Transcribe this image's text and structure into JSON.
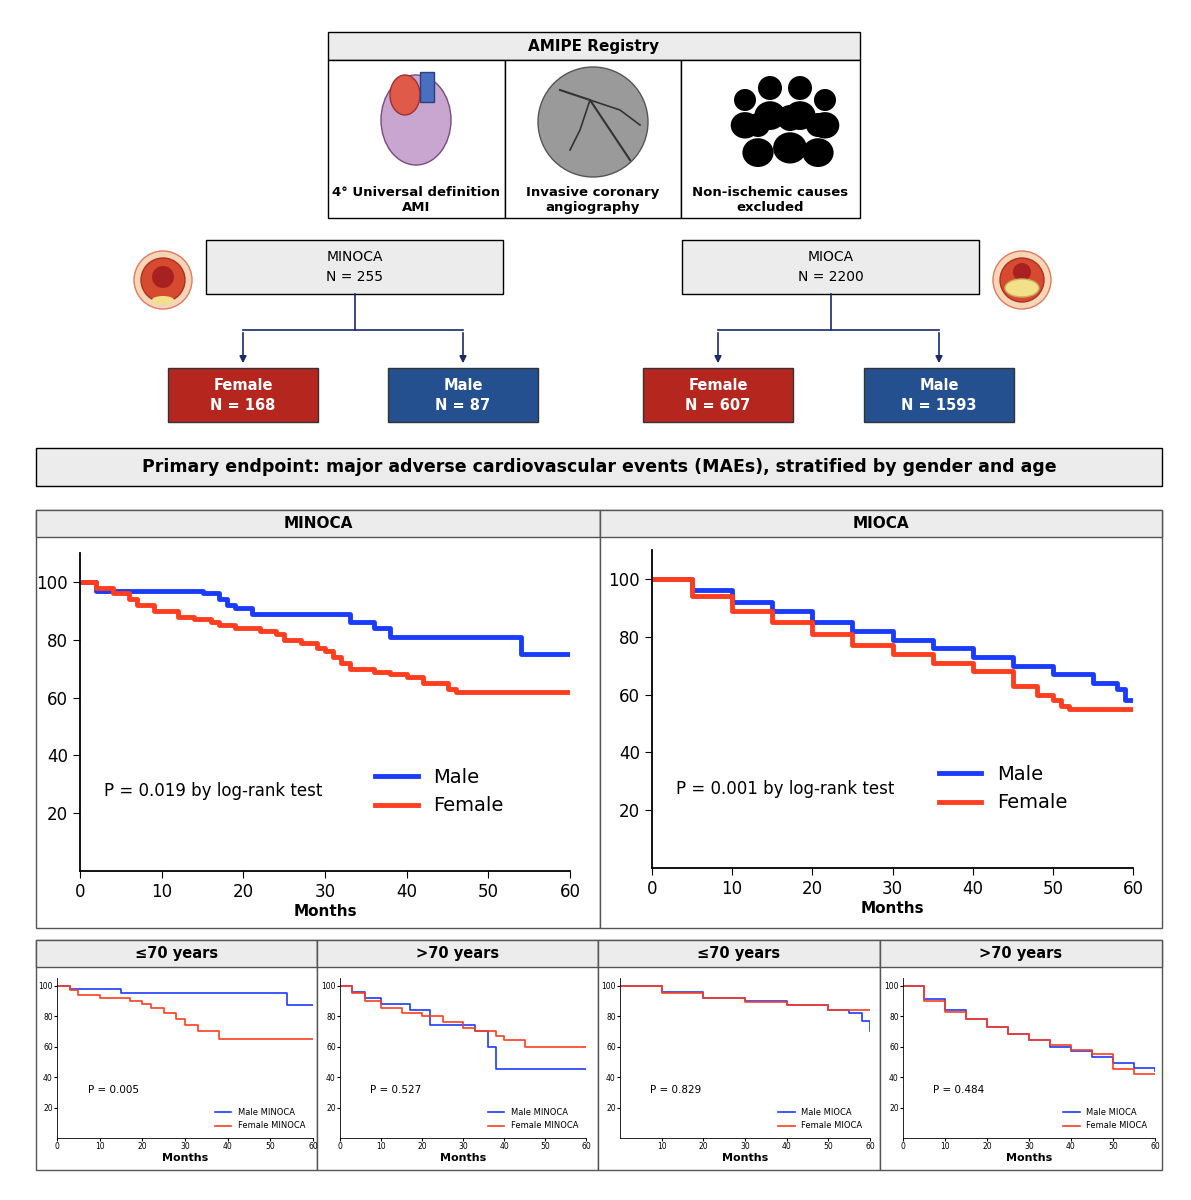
{
  "diagram": {
    "registry": {
      "title": "AMIPE Registry",
      "panels": [
        "4° Universal definition\nAMI",
        "Invasive coronary\nangiography",
        "Non-ischemic causes\nexcluded"
      ]
    },
    "groups": [
      {
        "label": "MINOCA",
        "n": "N = 255",
        "subgroups": [
          {
            "label": "Female",
            "n": "N = 168"
          },
          {
            "label": "Male",
            "n": "N = 87"
          }
        ]
      },
      {
        "label": "MIOCA",
        "n": "N = 2200",
        "subgroups": [
          {
            "label": "Female",
            "n": "N = 607"
          },
          {
            "label": "Male",
            "n": "N = 1593"
          }
        ]
      }
    ],
    "endpoint": "Primary endpoint: major adverse cardiovascular events (MAEs), stratified by gender and age"
  },
  "chart_data": [
    {
      "type": "step",
      "title": "MINOCA",
      "xlabel": "Months",
      "annotation": "P = 0.019 by log-rank test",
      "xlim": [
        0,
        60
      ],
      "ylim": [
        0,
        110
      ],
      "xticks": [
        0,
        10,
        20,
        30,
        40,
        50,
        60
      ],
      "yticks": [
        20,
        40,
        60,
        80,
        100
      ],
      "legend": "lower right",
      "series": [
        {
          "name": "Male",
          "color": "#1a3cff",
          "x": [
            0,
            2,
            15,
            17,
            18,
            19,
            21,
            33,
            36,
            38,
            54,
            60
          ],
          "values": [
            100,
            97,
            96,
            94,
            92,
            91,
            89,
            86,
            84,
            81,
            75,
            75
          ]
        },
        {
          "name": "Female",
          "color": "#ff3d1f",
          "x": [
            0,
            2,
            4,
            6,
            7,
            9,
            12,
            14,
            16,
            17,
            19,
            22,
            24,
            25,
            27,
            29,
            30,
            31,
            32,
            33,
            36,
            38,
            40,
            42,
            45,
            46,
            60
          ],
          "values": [
            100,
            98,
            96,
            94,
            92,
            90,
            88,
            87,
            86,
            85,
            84,
            83,
            82,
            80,
            79,
            77,
            76,
            74,
            72,
            70,
            69,
            68,
            67,
            65,
            63,
            62,
            62
          ]
        }
      ]
    },
    {
      "type": "step",
      "title": "MIOCA",
      "xlabel": "Months",
      "annotation": "P = 0.001 by log-rank test",
      "xlim": [
        0,
        60
      ],
      "ylim": [
        0,
        110
      ],
      "xticks": [
        0,
        10,
        20,
        30,
        40,
        50,
        60
      ],
      "yticks": [
        20,
        40,
        60,
        80,
        100
      ],
      "legend": "lower right",
      "series": [
        {
          "name": "Male",
          "color": "#1a3cff",
          "x": [
            0,
            5,
            10,
            15,
            20,
            25,
            30,
            35,
            40,
            45,
            50,
            55,
            58,
            59,
            60
          ],
          "values": [
            100,
            96,
            92,
            89,
            85,
            82,
            79,
            76,
            73,
            70,
            67,
            64,
            62,
            58,
            58
          ]
        },
        {
          "name": "Female",
          "color": "#ff3d1f",
          "x": [
            0,
            5,
            10,
            15,
            20,
            25,
            30,
            35,
            40,
            45,
            48,
            50,
            51,
            52,
            60
          ],
          "values": [
            100,
            94,
            89,
            85,
            81,
            77,
            74,
            71,
            68,
            63,
            60,
            58,
            56,
            55,
            55
          ]
        }
      ]
    },
    {
      "type": "step",
      "title": "≤70 years",
      "xlabel": "Months",
      "annotation": "P = 0.005",
      "xlim": [
        0,
        60
      ],
      "ylim": [
        0,
        105
      ],
      "xticks": [
        0,
        10,
        20,
        30,
        40,
        50,
        60
      ],
      "yticks": [
        20,
        40,
        60,
        80,
        100
      ],
      "legend": "lower right",
      "series": [
        {
          "name": "Male MINOCA",
          "color": "#1a3cff",
          "x": [
            0,
            3,
            15,
            54,
            60
          ],
          "values": [
            100,
            98,
            95,
            87,
            87
          ]
        },
        {
          "name": "Female MINOCA",
          "color": "#ff3d1f",
          "x": [
            0,
            3,
            5,
            10,
            17,
            20,
            22,
            25,
            28,
            30,
            33,
            38,
            60
          ],
          "values": [
            100,
            97,
            94,
            92,
            90,
            88,
            85,
            82,
            78,
            74,
            70,
            65,
            65
          ]
        }
      ]
    },
    {
      "type": "step",
      "title": ">70 years",
      "xlabel": "Months",
      "annotation": "P = 0.527",
      "xlim": [
        0,
        60
      ],
      "ylim": [
        0,
        105
      ],
      "xticks": [
        0,
        10,
        20,
        30,
        40,
        50,
        60
      ],
      "yticks": [
        20,
        40,
        60,
        80,
        100
      ],
      "legend": "lower right",
      "series": [
        {
          "name": "Male MINOCA",
          "color": "#1a3cff",
          "x": [
            0,
            3,
            6,
            10,
            17,
            22,
            33,
            36,
            38,
            60
          ],
          "values": [
            100,
            96,
            92,
            88,
            84,
            74,
            70,
            60,
            45,
            45
          ]
        },
        {
          "name": "Female MINOCA",
          "color": "#ff3d1f",
          "x": [
            0,
            3,
            6,
            10,
            15,
            20,
            25,
            30,
            33,
            38,
            40,
            45,
            60
          ],
          "values": [
            100,
            95,
            90,
            85,
            82,
            80,
            76,
            72,
            70,
            67,
            64,
            60,
            60
          ]
        }
      ]
    },
    {
      "type": "step",
      "title": "≤70 years",
      "xlabel": "Months",
      "annotation": "P = 0.829",
      "xlim": [
        0,
        60
      ],
      "ylim": [
        0,
        105
      ],
      "xticks": [
        10,
        20,
        30,
        40,
        50,
        60
      ],
      "yticks": [
        20,
        40,
        60,
        80,
        100
      ],
      "legend": "lower right",
      "series": [
        {
          "name": "Male MIOCA",
          "color": "#1a3cff",
          "x": [
            0,
            10,
            20,
            30,
            40,
            50,
            55,
            58,
            60
          ],
          "values": [
            100,
            96,
            92,
            90,
            87,
            84,
            82,
            77,
            70
          ]
        },
        {
          "name": "Female MIOCA",
          "color": "#ff3d1f",
          "x": [
            0,
            10,
            20,
            30,
            40,
            50,
            60
          ],
          "values": [
            100,
            95,
            92,
            89,
            87,
            84,
            84
          ]
        }
      ]
    },
    {
      "type": "step",
      "title": ">70 years",
      "xlabel": "Months",
      "annotation": "P = 0.484",
      "xlim": [
        0,
        60
      ],
      "ylim": [
        0,
        105
      ],
      "xticks": [
        0,
        10,
        20,
        30,
        40,
        50,
        60
      ],
      "yticks": [
        20,
        40,
        60,
        80,
        100
      ],
      "legend": "lower right",
      "series": [
        {
          "name": "Male MIOCA",
          "color": "#1a3cff",
          "x": [
            0,
            5,
            10,
            15,
            20,
            25,
            30,
            35,
            40,
            45,
            50,
            55,
            60
          ],
          "values": [
            100,
            91,
            84,
            78,
            73,
            68,
            64,
            60,
            57,
            53,
            49,
            46,
            44
          ]
        },
        {
          "name": "Female MIOCA",
          "color": "#ff3d1f",
          "x": [
            0,
            5,
            10,
            15,
            20,
            25,
            30,
            35,
            40,
            45,
            50,
            55,
            60
          ],
          "values": [
            100,
            90,
            83,
            78,
            73,
            68,
            64,
            61,
            58,
            55,
            45,
            42,
            42
          ]
        }
      ]
    }
  ]
}
